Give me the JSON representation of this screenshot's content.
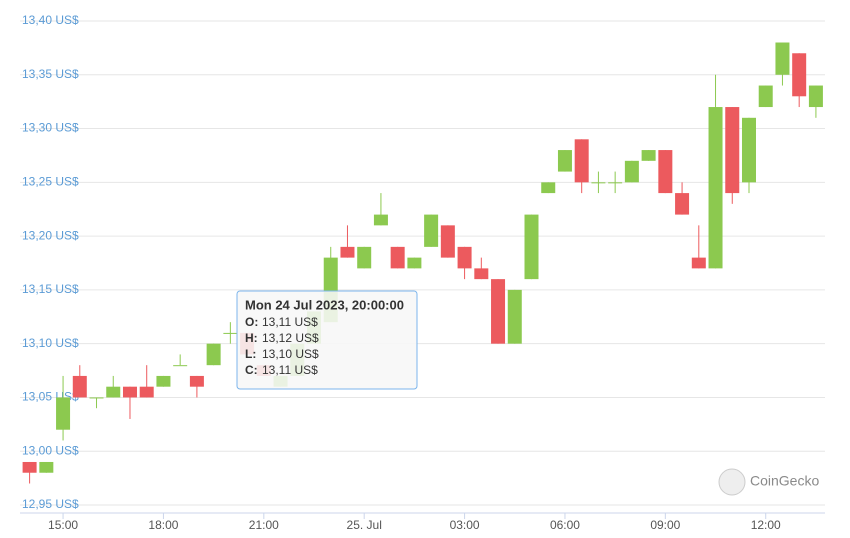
{
  "chart_data": {
    "type": "candlestick",
    "categories": [
      null,
      null,
      "15:00",
      null,
      null,
      null,
      null,
      null,
      "18:00",
      null,
      null,
      null,
      null,
      null,
      "21:00",
      null,
      null,
      null,
      null,
      null,
      "25. Jul",
      null,
      null,
      null,
      null,
      null,
      "03:00",
      null,
      null,
      null,
      null,
      null,
      "06:00",
      null,
      null,
      null,
      null,
      null,
      "09:00",
      null,
      null,
      null,
      null,
      null,
      "12:00",
      null,
      null,
      null
    ],
    "open": [
      12.99,
      12.98,
      13.02,
      13.07,
      13.05,
      13.05,
      13.06,
      13.06,
      13.06,
      13.08,
      13.07,
      13.08,
      13.11,
      13.11,
      13.08,
      13.06,
      13.07,
      13.1,
      13.12,
      13.19,
      13.17,
      13.21,
      13.19,
      13.17,
      13.19,
      13.21,
      13.19,
      13.17,
      13.16,
      13.1,
      13.16,
      13.24,
      13.26,
      13.29,
      13.25,
      13.25,
      13.25,
      13.27,
      13.28,
      13.24,
      13.18,
      13.17,
      13.32,
      13.25,
      13.32,
      13.35,
      13.37,
      13.32
    ],
    "high": [
      12.99,
      12.99,
      13.07,
      13.08,
      13.05,
      13.07,
      13.06,
      13.08,
      13.07,
      13.09,
      13.07,
      13.1,
      13.12,
      13.11,
      13.08,
      13.07,
      13.1,
      13.13,
      13.19,
      13.21,
      13.19,
      13.24,
      13.19,
      13.18,
      13.22,
      13.21,
      13.19,
      13.18,
      13.16,
      13.15,
      13.22,
      13.25,
      13.28,
      13.29,
      13.26,
      13.26,
      13.27,
      13.28,
      13.28,
      13.25,
      13.21,
      13.35,
      13.32,
      13.31,
      13.34,
      13.38,
      13.37,
      13.34
    ],
    "low": [
      12.97,
      12.98,
      13.01,
      13.05,
      13.04,
      13.05,
      13.03,
      13.05,
      13.06,
      13.08,
      13.05,
      13.08,
      13.1,
      13.09,
      13.07,
      13.06,
      13.07,
      13.1,
      13.12,
      13.18,
      13.17,
      13.21,
      13.17,
      13.17,
      13.19,
      13.18,
      13.16,
      13.16,
      13.1,
      13.1,
      13.16,
      13.24,
      13.26,
      13.24,
      13.24,
      13.24,
      13.25,
      13.27,
      13.24,
      13.22,
      13.17,
      13.17,
      13.23,
      13.24,
      13.32,
      13.34,
      13.32,
      13.31
    ],
    "close": [
      12.98,
      12.99,
      13.05,
      13.05,
      13.05,
      13.06,
      13.05,
      13.05,
      13.07,
      13.08,
      13.06,
      13.1,
      13.11,
      13.09,
      13.07,
      13.07,
      13.1,
      13.13,
      13.18,
      13.18,
      13.19,
      13.22,
      13.17,
      13.18,
      13.22,
      13.18,
      13.17,
      13.16,
      13.1,
      13.15,
      13.22,
      13.25,
      13.28,
      13.25,
      13.25,
      13.25,
      13.27,
      13.28,
      13.24,
      13.22,
      13.17,
      13.32,
      13.24,
      13.31,
      13.34,
      13.38,
      13.33,
      13.34
    ],
    "up_color": "#8cc94f",
    "down_color": "#ec5a5e",
    "ylim": [
      12.95,
      13.4
    ],
    "yticks": [
      {
        "value": 12.95,
        "label": "12,95 US$"
      },
      {
        "value": 13.0,
        "label": "13,00 US$"
      },
      {
        "value": 13.05,
        "label": "13,05 US$"
      },
      {
        "value": 13.1,
        "label": "13,10 US$"
      },
      {
        "value": 13.15,
        "label": "13,15 US$"
      },
      {
        "value": 13.2,
        "label": "13,20 US$"
      },
      {
        "value": 13.25,
        "label": "13,25 US$"
      },
      {
        "value": 13.3,
        "label": "13,30 US$"
      },
      {
        "value": 13.35,
        "label": "13,35 US$"
      },
      {
        "value": 13.4,
        "label": "13,40 US$"
      }
    ],
    "grid": true,
    "watermark": "CoinGecko",
    "tooltip": {
      "title": "Mon 24 Jul 2023, 20:00:00",
      "rows": [
        {
          "key": "O:",
          "label": "13,11 US$"
        },
        {
          "key": "H:",
          "label": "13,12 US$"
        },
        {
          "key": "L:",
          "label": "13,10 US$"
        },
        {
          "key": "C:",
          "label": "13,11 US$"
        }
      ]
    }
  }
}
